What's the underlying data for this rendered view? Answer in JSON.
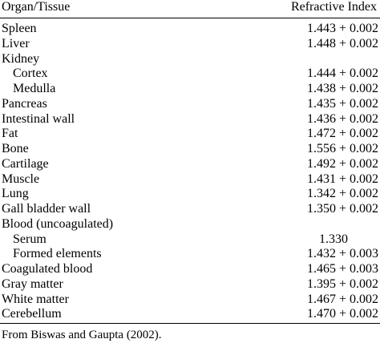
{
  "table": {
    "header": {
      "left": "Organ/Tissue",
      "right": "Refractive Index"
    },
    "rows": [
      {
        "name": "Spleen",
        "value": "1.443 + 0.002",
        "indent": false
      },
      {
        "name": "Liver",
        "value": "1.448 + 0.002",
        "indent": false
      },
      {
        "name": "Kidney",
        "value": "",
        "indent": false
      },
      {
        "name": "Cortex",
        "value": "1.444 + 0.002",
        "indent": true
      },
      {
        "name": "Medulla",
        "value": "1.438 + 0.002",
        "indent": true
      },
      {
        "name": "Pancreas",
        "value": "1.435 + 0.002",
        "indent": false
      },
      {
        "name": "Intestinal wall",
        "value": "1.436 + 0.002",
        "indent": false
      },
      {
        "name": "Fat",
        "value": "1.472 + 0.002",
        "indent": false
      },
      {
        "name": "Bone",
        "value": "1.556 + 0.002",
        "indent": false
      },
      {
        "name": "Cartilage",
        "value": "1.492 + 0.002",
        "indent": false
      },
      {
        "name": "Muscle",
        "value": "1.431 + 0.002",
        "indent": false
      },
      {
        "name": "Lung",
        "value": "1.342 + 0.002",
        "indent": false
      },
      {
        "name": "Gall bladder wall",
        "value": "1.350 + 0.002",
        "indent": false
      },
      {
        "name": "Blood (uncoagulated)",
        "value": "",
        "indent": false
      },
      {
        "name": "Serum",
        "value": "1.330",
        "indent": true,
        "centered": true
      },
      {
        "name": "Formed elements",
        "value": "1.432 + 0.003",
        "indent": true
      },
      {
        "name": "Coagulated blood",
        "value": "1.465 + 0.003",
        "indent": false
      },
      {
        "name": "Gray matter",
        "value": "1.395 + 0.002",
        "indent": false
      },
      {
        "name": "White matter",
        "value": "1.467 + 0.002",
        "indent": false
      },
      {
        "name": "Cerebellum",
        "value": "1.470 + 0.002",
        "indent": false
      }
    ]
  },
  "footnote": "From Biswas and Gaupta (2002)."
}
